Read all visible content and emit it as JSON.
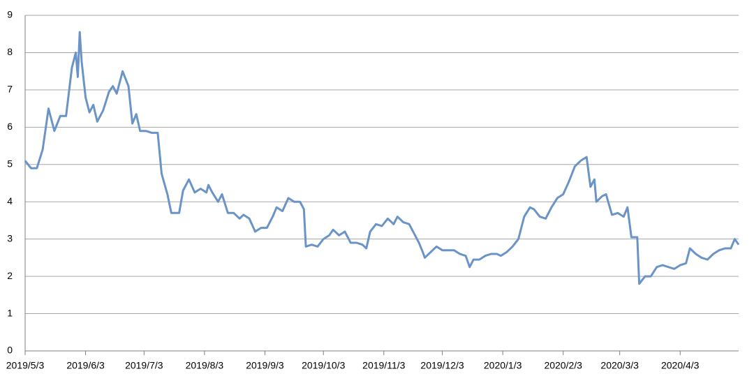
{
  "chart_data": {
    "type": "line",
    "x": [
      "2019/5/3",
      "2019/5/6",
      "2019/5/9",
      "2019/5/12",
      "2019/5/15",
      "2019/5/18",
      "2019/5/21",
      "2019/5/24",
      "2019/5/27",
      "2019/5/29",
      "2019/5/30",
      "2019/5/31",
      "2019/6/1",
      "2019/6/3",
      "2019/6/5",
      "2019/6/7",
      "2019/6/9",
      "2019/6/12",
      "2019/6/15",
      "2019/6/17",
      "2019/6/19",
      "2019/6/22",
      "2019/6/25",
      "2019/6/27",
      "2019/6/29",
      "2019/7/1",
      "2019/7/4",
      "2019/7/7",
      "2019/7/10",
      "2019/7/12",
      "2019/7/15",
      "2019/7/17",
      "2019/7/21",
      "2019/7/23",
      "2019/7/26",
      "2019/7/29",
      "2019/8/1",
      "2019/8/4",
      "2019/8/5",
      "2019/8/7",
      "2019/8/10",
      "2019/8/12",
      "2019/8/15",
      "2019/8/18",
      "2019/8/21",
      "2019/8/23",
      "2019/8/26",
      "2019/8/29",
      "2019/9/1",
      "2019/9/4",
      "2019/9/7",
      "2019/9/9",
      "2019/9/12",
      "2019/9/15",
      "2019/9/18",
      "2019/9/21",
      "2019/9/23",
      "2019/9/24",
      "2019/9/27",
      "2019/9/30",
      "2019/10/3",
      "2019/10/6",
      "2019/10/8",
      "2019/10/11",
      "2019/10/14",
      "2019/10/17",
      "2019/10/20",
      "2019/10/23",
      "2019/10/25",
      "2019/10/27",
      "2019/10/30",
      "2019/11/2",
      "2019/11/5",
      "2019/11/8",
      "2019/11/10",
      "2019/11/13",
      "2019/11/16",
      "2019/11/19",
      "2019/11/21",
      "2019/11/23",
      "2019/11/24",
      "2019/11/27",
      "2019/11/30",
      "2019/12/3",
      "2019/12/6",
      "2019/12/9",
      "2019/12/12",
      "2019/12/15",
      "2019/12/17",
      "2019/12/19",
      "2019/12/22",
      "2019/12/25",
      "2019/12/28",
      "2019/12/31",
      "2020/1/2",
      "2020/1/5",
      "2020/1/8",
      "2020/1/11",
      "2020/1/14",
      "2020/1/17",
      "2020/1/19",
      "2020/1/22",
      "2020/1/25",
      "2020/1/28",
      "2020/1/31",
      "2020/2/3",
      "2020/2/6",
      "2020/2/9",
      "2020/2/12",
      "2020/2/15",
      "2020/2/17",
      "2020/2/19",
      "2020/2/20",
      "2020/2/23",
      "2020/2/25",
      "2020/2/28",
      "2020/3/2",
      "2020/3/5",
      "2020/3/7",
      "2020/3/9",
      "2020/3/12",
      "2020/3/13",
      "2020/3/16",
      "2020/3/19",
      "2020/3/22",
      "2020/3/25",
      "2020/3/28",
      "2020/3/31",
      "2020/4/3",
      "2020/4/6",
      "2020/4/8",
      "2020/4/11",
      "2020/4/14",
      "2020/4/17",
      "2020/4/20",
      "2020/4/23",
      "2020/4/26",
      "2020/4/29",
      "2020/5/1",
      "2020/5/3"
    ],
    "values": [
      5.1,
      4.9,
      4.9,
      5.4,
      6.5,
      5.9,
      6.3,
      6.3,
      7.6,
      8.0,
      7.35,
      8.55,
      7.75,
      6.8,
      6.4,
      6.6,
      6.15,
      6.45,
      6.95,
      7.1,
      6.9,
      7.5,
      7.1,
      6.1,
      6.35,
      5.9,
      5.9,
      5.85,
      5.85,
      4.75,
      4.2,
      3.7,
      3.7,
      4.3,
      4.6,
      4.25,
      4.35,
      4.25,
      4.45,
      4.25,
      4.0,
      4.2,
      3.7,
      3.7,
      3.55,
      3.65,
      3.55,
      3.2,
      3.3,
      3.3,
      3.6,
      3.85,
      3.75,
      4.1,
      4.0,
      4.0,
      3.8,
      2.8,
      2.85,
      2.8,
      3.0,
      3.1,
      3.25,
      3.1,
      3.2,
      2.9,
      2.9,
      2.85,
      2.75,
      3.2,
      3.4,
      3.35,
      3.55,
      3.4,
      3.6,
      3.45,
      3.4,
      3.1,
      2.9,
      2.65,
      2.5,
      2.65,
      2.8,
      2.7,
      2.7,
      2.7,
      2.6,
      2.55,
      2.25,
      2.45,
      2.45,
      2.55,
      2.6,
      2.6,
      2.55,
      2.65,
      2.8,
      3.0,
      3.6,
      3.85,
      3.8,
      3.6,
      3.55,
      3.85,
      4.1,
      4.2,
      4.55,
      4.95,
      5.1,
      5.2,
      4.4,
      4.6,
      4.0,
      4.15,
      4.2,
      3.65,
      3.7,
      3.6,
      3.85,
      3.05,
      3.05,
      1.8,
      2.0,
      2.0,
      2.25,
      2.3,
      2.25,
      2.2,
      2.3,
      2.35,
      2.75,
      2.6,
      2.5,
      2.45,
      2.6,
      2.7,
      2.75,
      2.75,
      3.0,
      2.85
    ],
    "color": "#6a93c8",
    "xlim": [
      "2019/5/3",
      "2020/5/3"
    ],
    "xticks": [
      "2019/5/3",
      "2019/6/3",
      "2019/7/3",
      "2019/8/3",
      "2019/9/3",
      "2019/10/3",
      "2019/11/3",
      "2019/12/3",
      "2020/1/3",
      "2020/2/3",
      "2020/3/3",
      "2020/4/3"
    ],
    "ylim": [
      0,
      9
    ],
    "yticks": [
      0,
      1,
      2,
      3,
      4,
      5,
      6,
      7,
      8,
      9
    ],
    "grid": true
  }
}
